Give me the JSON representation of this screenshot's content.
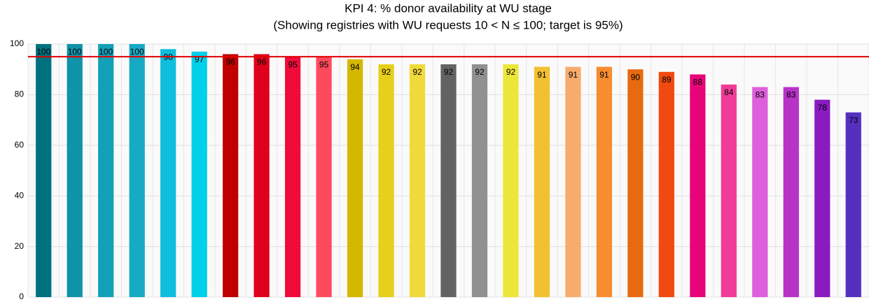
{
  "chart_data": {
    "type": "bar",
    "title": "KPI 4: % donor availability at WU stage",
    "subtitle": "(Showing registries with WU requests 10 < N ≤ 100; target is 95%)",
    "categories": [
      null,
      null,
      null,
      null,
      null,
      null,
      null,
      null,
      null,
      null,
      null,
      null,
      null,
      null,
      null,
      null,
      null,
      null,
      null,
      null,
      null,
      null,
      null,
      null,
      null,
      null,
      null
    ],
    "values": [
      100,
      100,
      100,
      100,
      98,
      97,
      96,
      96,
      95,
      95,
      94,
      92,
      92,
      92,
      92,
      92,
      91,
      91,
      91,
      90,
      89,
      88,
      84,
      83,
      83,
      78,
      73
    ],
    "colors": [
      "#00727f",
      "#0f93a8",
      "#12a1b8",
      "#17aac4",
      "#0fbedc",
      "#00d0ea",
      "#c00000",
      "#e0001b",
      "#f00c3a",
      "#ff4a5e",
      "#d4b800",
      "#e8cf1a",
      "#f0d93a",
      "#636363",
      "#909090",
      "#ede63a",
      "#f2c030",
      "#f7ac6e",
      "#f78c30",
      "#e86a10",
      "#f04a10",
      "#e8057a",
      "#f03c98",
      "#dd5fdc",
      "#b832c8",
      "#8a1bc0",
      "#5530c0"
    ],
    "target": 95,
    "target_color": "#e00000",
    "ylim": [
      0,
      100
    ],
    "yticks": [
      0,
      20,
      40,
      60,
      80,
      100
    ],
    "grid": true
  }
}
